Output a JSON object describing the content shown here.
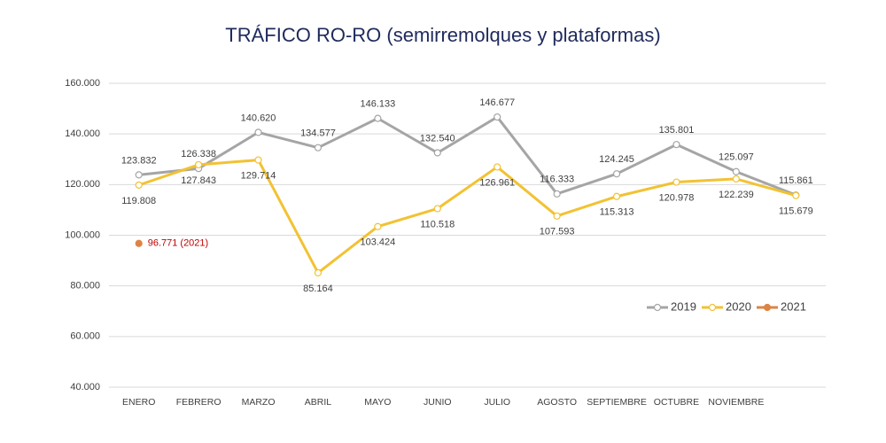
{
  "chart_data": {
    "type": "line",
    "title": "TRÁFICO RO-RO (semirremolques y plataformas)",
    "categories": [
      "ENERO",
      "FEBRERO",
      "MARZO",
      "ABRIL",
      "MAYO",
      "JUNIO",
      "JULIO",
      "AGOSTO",
      "SEPTIEMBRE",
      "OCTUBRE",
      "NOVIEMBRE",
      null
    ],
    "series": [
      {
        "name": "2019",
        "color": "#a5a5a5",
        "values": [
          123832,
          126338,
          140620,
          134577,
          146133,
          132540,
          146677,
          116333,
          124245,
          135801,
          125097,
          115861
        ],
        "value_labels": [
          "123.832",
          "126.338",
          "140.620",
          "134.577",
          "146.133",
          "132.540",
          "146.677",
          "116.333",
          "124.245",
          "135.801",
          "125.097",
          "115.861"
        ]
      },
      {
        "name": "2020",
        "color": "#f2c232",
        "values": [
          119808,
          127843,
          129714,
          85164,
          103424,
          110518,
          126961,
          107593,
          115313,
          120978,
          122239,
          115679
        ],
        "value_labels": [
          "119.808",
          "127.843",
          "129.714",
          "85.164",
          "103.424",
          "110.518",
          "126.961",
          "107.593",
          "115.313",
          "120.978",
          "122.239",
          "115.679"
        ]
      },
      {
        "name": "2021",
        "color": "#dd8444",
        "label_color": "#c00000",
        "values": [
          96771,
          null,
          null,
          null,
          null,
          null,
          null,
          null,
          null,
          null,
          null,
          null
        ],
        "value_labels": [
          "96.771 (2021)",
          null,
          null,
          null,
          null,
          null,
          null,
          null,
          null,
          null,
          null,
          null
        ]
      }
    ],
    "ylim": [
      40000,
      160000
    ],
    "yticks": [
      {
        "value": 40000,
        "label": "40.000"
      },
      {
        "value": 60000,
        "label": "60.000"
      },
      {
        "value": 80000,
        "label": "80.000"
      },
      {
        "value": 100000,
        "label": "100.000"
      },
      {
        "value": 120000,
        "label": "120.000"
      },
      {
        "value": 140000,
        "label": "140.000"
      },
      {
        "value": 160000,
        "label": "160.000"
      }
    ],
    "grid": true,
    "legend": "lower right"
  }
}
